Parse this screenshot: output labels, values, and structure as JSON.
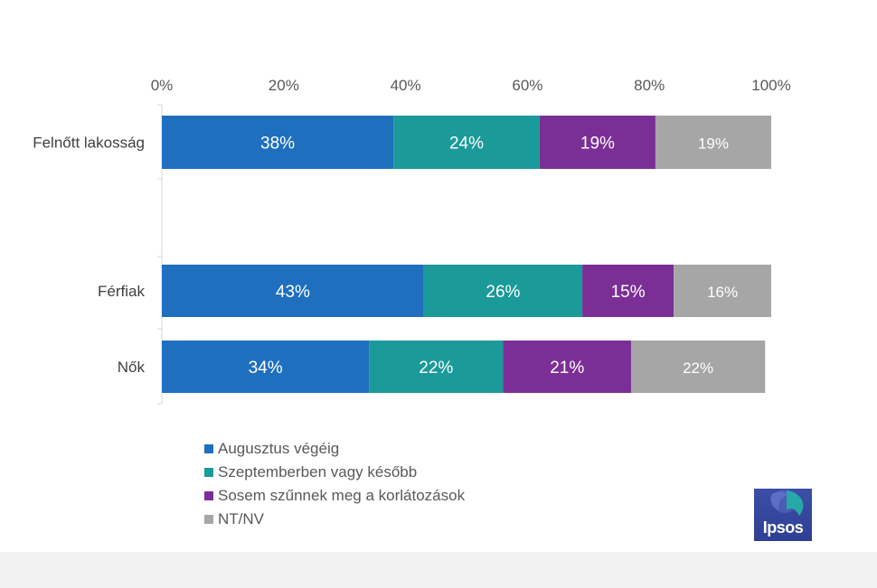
{
  "chart_data": {
    "type": "bar",
    "orientation": "horizontal",
    "stacked": true,
    "percent": true,
    "x_ticks": [
      "0%",
      "20%",
      "40%",
      "60%",
      "80%",
      "100%"
    ],
    "xlim": [
      0,
      100
    ],
    "categories": [
      "Felnőtt lakosság",
      "Férfiak",
      "Nők"
    ],
    "series": [
      {
        "name": "Augusztus végéig",
        "values": [
          38,
          43,
          34
        ],
        "labels": [
          "38%",
          "43%",
          "34%"
        ],
        "color": "#1f6fbf"
      },
      {
        "name": "Szeptemberben vagy később",
        "values": [
          24,
          26,
          22
        ],
        "labels": [
          "24%",
          "26%",
          "22%"
        ],
        "color": "#1a9a98"
      },
      {
        "name": "Sosem szűnnek meg a korlátozások",
        "values": [
          19,
          15,
          21
        ],
        "labels": [
          "19%",
          "15%",
          "21%"
        ],
        "color": "#7b2f96"
      },
      {
        "name": "NT/NV",
        "values": [
          19,
          16,
          22
        ],
        "labels": [
          "19%",
          "16%",
          "22%"
        ],
        "color": "#a6a6a6"
      }
    ],
    "grid": false,
    "legend_position": "bottom-left"
  },
  "logo": {
    "text": "Ipsos"
  }
}
